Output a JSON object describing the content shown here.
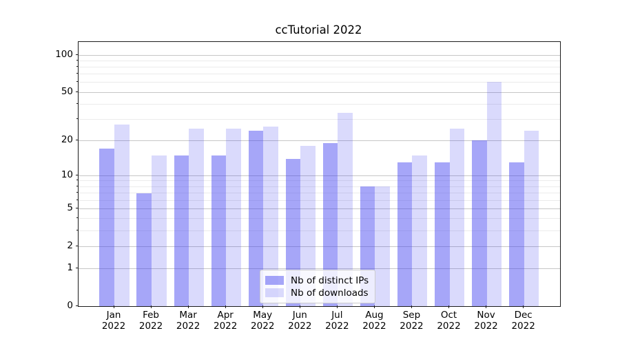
{
  "title": "ccTutorial 2022",
  "chart_data": {
    "type": "bar",
    "title": "ccTutorial 2022",
    "categories": [
      "Jan 2022",
      "Feb 2022",
      "Mar 2022",
      "Apr 2022",
      "May 2022",
      "Jun 2022",
      "Jul 2022",
      "Aug 2022",
      "Sep 2022",
      "Oct 2022",
      "Nov 2022",
      "Dec 2022"
    ],
    "series": [
      {
        "name": "Nb of distinct IPs",
        "fill": "rgba(60,60,240,0.46)",
        "values": [
          17,
          7,
          15,
          15,
          24,
          14,
          19,
          8,
          13,
          13,
          20,
          13
        ]
      },
      {
        "name": "Nb of downloads",
        "fill": "rgba(60,60,240,0.19)",
        "values": [
          27,
          15,
          25,
          25,
          26,
          18,
          34,
          8,
          15,
          25,
          61,
          24
        ]
      }
    ],
    "y_axis": {
      "scale": "log10(1+y)",
      "major_ticks": [
        100,
        50,
        20,
        10,
        5,
        2,
        1,
        0
      ],
      "minor_ticks": [
        90,
        80,
        70,
        60,
        40,
        30,
        9,
        8,
        7,
        6,
        4,
        3
      ],
      "range": [
        0,
        129
      ]
    },
    "grid": {
      "axis": "y",
      "which": "both"
    },
    "legend_position": "lower center"
  },
  "colors": {
    "grid_major": "#c6c6c6",
    "grid_minor": "#ebebeb",
    "spine": "#1a1a1a"
  }
}
